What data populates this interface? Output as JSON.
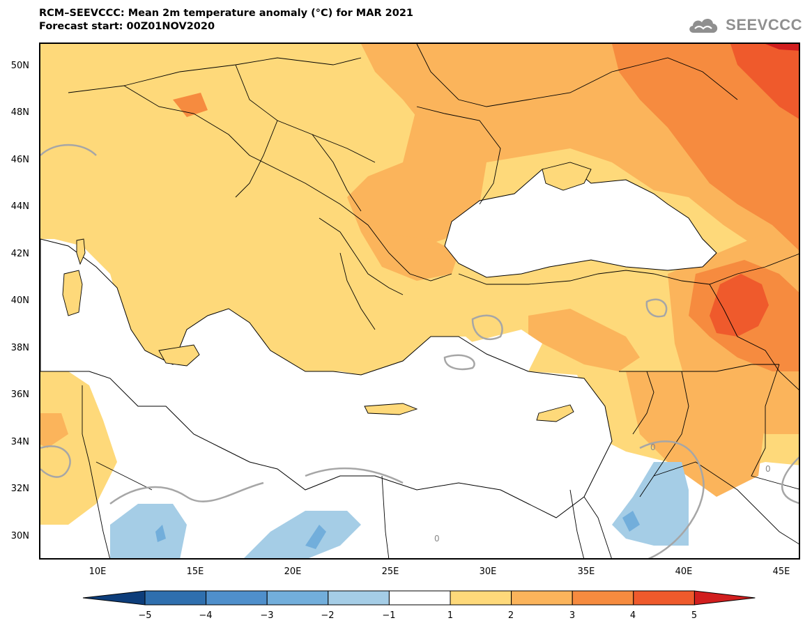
{
  "header": {
    "title_line1": "RCM–SEEVCCC: Mean 2m temperature anomaly (°C) for MAR 2021",
    "title_line2": "Forecast start: 00Z01NOV2020",
    "logo_text": "SEEVCCC",
    "logo_icon": "cloud-icon"
  },
  "map": {
    "lat_labels": [
      "50N",
      "48N",
      "46N",
      "44N",
      "42N",
      "40N",
      "38N",
      "36N",
      "34N",
      "32N",
      "30N"
    ],
    "lon_labels": [
      "10E",
      "15E",
      "20E",
      "25E",
      "30E",
      "35E",
      "40E",
      "45E"
    ],
    "contour_label": "0",
    "lon_range": [
      7,
      46
    ],
    "lat_range": [
      29,
      51
    ]
  },
  "legend": {
    "labels": [
      "−5",
      "−4",
      "−3",
      "−2",
      "−1",
      "1",
      "2",
      "3",
      "4",
      "5"
    ],
    "colors": {
      "below_min": "#0d3d7a",
      "bin_m5_m4": "#2f6fae",
      "bin_m4_m3": "#4f8fcb",
      "bin_m3_m2": "#72aedb",
      "bin_m2_m1": "#a5cde6",
      "bin_m1_1": "#ffffff",
      "bin_1_2": "#fed97a",
      "bin_2_3": "#fbb45b",
      "bin_3_4": "#f68b3f",
      "bin_4_5": "#ef5a2c",
      "above_max": "#d11e1e"
    }
  }
}
